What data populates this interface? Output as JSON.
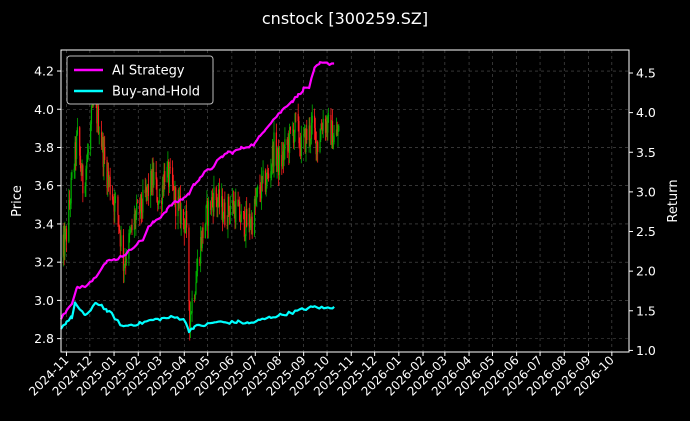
{
  "chart_data": {
    "type": "line",
    "title": "cnstock [300259.SZ]",
    "xlabel": "",
    "ylabel": "Price",
    "y2label": "Return",
    "ylim": [
      2.73,
      4.31
    ],
    "y2lim": [
      0.98,
      4.79
    ],
    "yticks": [
      "2.8",
      "3.0",
      "3.2",
      "3.4",
      "3.6",
      "3.8",
      "4.0",
      "4.2"
    ],
    "y2ticks": [
      "1.0",
      "1.5",
      "2.0",
      "2.5",
      "3.0",
      "3.5",
      "4.0",
      "4.5"
    ],
    "xticks": [
      "2024-11",
      "2024-12",
      "2025-01",
      "2025-02",
      "2025-03",
      "2025-04",
      "2025-05",
      "2025-06",
      "2025-07",
      "2025-08",
      "2025-09",
      "2025-10",
      "2025-11",
      "2025-12",
      "2026-01",
      "2026-02",
      "2026-03",
      "2026-04",
      "2026-05",
      "2026-06",
      "2026-07",
      "2026-08",
      "2026-09",
      "2026-10"
    ],
    "grid": true,
    "legend": "top-left",
    "colors": {
      "background": "#000000",
      "up": "#00b000",
      "down": "#ff1e1e",
      "ai": "#ff00ff",
      "bh": "#00ffff",
      "text": "#ffffff",
      "grid": "#555555"
    },
    "price_path": [
      [
        "2024-10-25",
        3.2
      ],
      [
        "2024-11-01",
        3.35
      ],
      [
        "2024-11-08",
        3.62
      ],
      [
        "2024-11-15",
        3.85
      ],
      [
        "2024-11-22",
        3.6
      ],
      [
        "2024-11-29",
        3.78
      ],
      [
        "2024-12-06",
        4.05
      ],
      [
        "2024-12-13",
        3.92
      ],
      [
        "2024-12-20",
        3.72
      ],
      [
        "2024-12-27",
        3.6
      ],
      [
        "2025-01-06",
        3.45
      ],
      [
        "2025-01-13",
        3.2
      ],
      [
        "2025-01-20",
        3.3
      ],
      [
        "2025-01-27",
        3.42
      ],
      [
        "2025-02-07",
        3.5
      ],
      [
        "2025-02-14",
        3.58
      ],
      [
        "2025-02-21",
        3.64
      ],
      [
        "2025-02-28",
        3.5
      ],
      [
        "2025-03-07",
        3.68
      ],
      [
        "2025-03-14",
        3.62
      ],
      [
        "2025-03-21",
        3.52
      ],
      [
        "2025-03-28",
        3.45
      ],
      [
        "2025-04-03",
        3.4
      ],
      [
        "2025-04-08",
        2.92
      ],
      [
        "2025-04-15",
        3.1
      ],
      [
        "2025-04-22",
        3.3
      ],
      [
        "2025-04-30",
        3.45
      ],
      [
        "2025-05-09",
        3.55
      ],
      [
        "2025-05-16",
        3.5
      ],
      [
        "2025-05-23",
        3.45
      ],
      [
        "2025-05-30",
        3.5
      ],
      [
        "2025-06-06",
        3.48
      ],
      [
        "2025-06-13",
        3.42
      ],
      [
        "2025-06-20",
        3.4
      ],
      [
        "2025-06-27",
        3.42
      ],
      [
        "2025-07-04",
        3.55
      ],
      [
        "2025-07-11",
        3.6
      ],
      [
        "2025-07-18",
        3.65
      ],
      [
        "2025-07-25",
        3.8
      ],
      [
        "2025-08-01",
        3.7
      ],
      [
        "2025-08-08",
        3.78
      ],
      [
        "2025-08-15",
        3.85
      ],
      [
        "2025-08-22",
        3.92
      ],
      [
        "2025-08-29",
        3.8
      ],
      [
        "2025-09-05",
        3.86
      ],
      [
        "2025-09-12",
        3.9
      ],
      [
        "2025-09-19",
        3.82
      ],
      [
        "2025-09-26",
        3.95
      ],
      [
        "2025-10-10",
        3.85
      ],
      [
        "2025-10-17",
        3.88
      ]
    ],
    "series": [
      {
        "name": "AI Strategy",
        "color": "#ff00ff",
        "points": [
          [
            "2024-10-25",
            1.4
          ],
          [
            "2024-11-01",
            1.5
          ],
          [
            "2024-11-08",
            1.58
          ],
          [
            "2024-11-15",
            1.8
          ],
          [
            "2024-11-25",
            1.82
          ],
          [
            "2024-12-06",
            1.9
          ],
          [
            "2024-12-16",
            2.05
          ],
          [
            "2024-12-23",
            2.12
          ],
          [
            "2025-01-03",
            2.15
          ],
          [
            "2025-01-13",
            2.2
          ],
          [
            "2025-01-20",
            2.25
          ],
          [
            "2025-01-27",
            2.32
          ],
          [
            "2025-02-07",
            2.4
          ],
          [
            "2025-02-14",
            2.55
          ],
          [
            "2025-02-21",
            2.62
          ],
          [
            "2025-03-03",
            2.7
          ],
          [
            "2025-03-10",
            2.78
          ],
          [
            "2025-03-17",
            2.85
          ],
          [
            "2025-03-24",
            2.88
          ],
          [
            "2025-03-31",
            2.92
          ],
          [
            "2025-04-07",
            2.98
          ],
          [
            "2025-04-14",
            3.1
          ],
          [
            "2025-04-21",
            3.18
          ],
          [
            "2025-04-28",
            3.25
          ],
          [
            "2025-05-06",
            3.3
          ],
          [
            "2025-05-13",
            3.38
          ],
          [
            "2025-05-20",
            3.45
          ],
          [
            "2025-05-27",
            3.5
          ],
          [
            "2025-06-03",
            3.5
          ],
          [
            "2025-06-13",
            3.55
          ],
          [
            "2025-06-23",
            3.58
          ],
          [
            "2025-06-30",
            3.6
          ],
          [
            "2025-07-07",
            3.7
          ],
          [
            "2025-07-14",
            3.8
          ],
          [
            "2025-07-21",
            3.88
          ],
          [
            "2025-07-28",
            3.95
          ],
          [
            "2025-08-04",
            4.02
          ],
          [
            "2025-08-11",
            4.1
          ],
          [
            "2025-08-18",
            4.15
          ],
          [
            "2025-08-25",
            4.22
          ],
          [
            "2025-09-01",
            4.3
          ],
          [
            "2025-09-08",
            4.32
          ],
          [
            "2025-09-15",
            4.55
          ],
          [
            "2025-09-22",
            4.62
          ],
          [
            "2025-10-10",
            4.62
          ]
        ]
      },
      {
        "name": "Buy-and-Hold",
        "color": "#00ffff",
        "points": [
          [
            "2024-10-25",
            1.28
          ],
          [
            "2024-11-01",
            1.36
          ],
          [
            "2024-11-08",
            1.42
          ],
          [
            "2024-11-12",
            1.6
          ],
          [
            "2024-11-18",
            1.5
          ],
          [
            "2024-11-25",
            1.45
          ],
          [
            "2024-12-02",
            1.5
          ],
          [
            "2024-12-09",
            1.6
          ],
          [
            "2024-12-16",
            1.57
          ],
          [
            "2024-12-23",
            1.5
          ],
          [
            "2024-12-30",
            1.45
          ],
          [
            "2025-01-06",
            1.36
          ],
          [
            "2025-01-13",
            1.3
          ],
          [
            "2025-01-20",
            1.32
          ],
          [
            "2025-02-03",
            1.34
          ],
          [
            "2025-02-17",
            1.38
          ],
          [
            "2025-03-03",
            1.4
          ],
          [
            "2025-03-17",
            1.42
          ],
          [
            "2025-03-31",
            1.4
          ],
          [
            "2025-04-07",
            1.25
          ],
          [
            "2025-04-14",
            1.3
          ],
          [
            "2025-04-28",
            1.32
          ],
          [
            "2025-05-12",
            1.36
          ],
          [
            "2025-05-26",
            1.35
          ],
          [
            "2025-06-09",
            1.36
          ],
          [
            "2025-06-23",
            1.34
          ],
          [
            "2025-07-07",
            1.38
          ],
          [
            "2025-07-21",
            1.42
          ],
          [
            "2025-08-04",
            1.45
          ],
          [
            "2025-08-18",
            1.48
          ],
          [
            "2025-09-01",
            1.52
          ],
          [
            "2025-09-15",
            1.55
          ],
          [
            "2025-09-29",
            1.53
          ],
          [
            "2025-10-10",
            1.55
          ]
        ]
      }
    ]
  }
}
